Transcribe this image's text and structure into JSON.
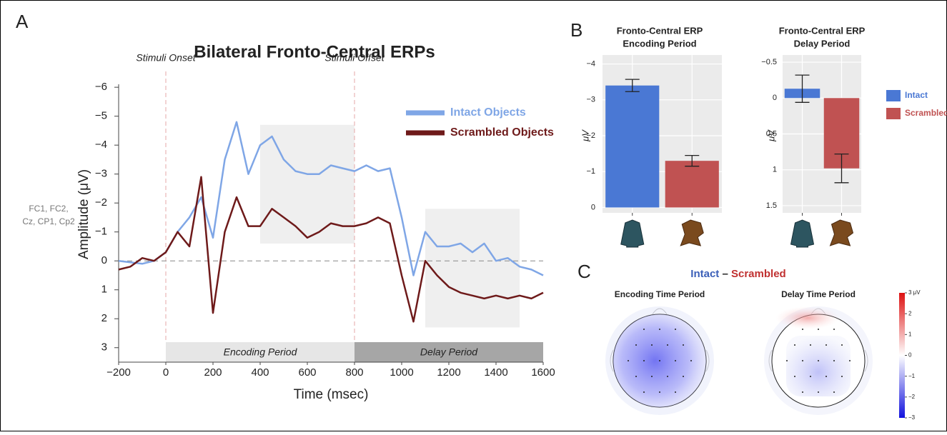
{
  "panel_labels": [
    "A",
    "B",
    "C"
  ],
  "chart_data": [
    {
      "type": "line",
      "title": "Bilateral Fronto-Central ERPs",
      "x_label": "Time (msec)",
      "y_label": "Amplitude (μV)",
      "channel_note": [
        "FC1, FC2,",
        "Cz, CP1, Cp2"
      ],
      "x": [
        -200,
        -150,
        -100,
        -50,
        0,
        50,
        100,
        150,
        200,
        250,
        300,
        350,
        400,
        450,
        500,
        550,
        600,
        650,
        700,
        750,
        800,
        850,
        900,
        950,
        1000,
        1050,
        1100,
        1150,
        1200,
        1250,
        1300,
        1350,
        1400,
        1450,
        1500,
        1550,
        1600
      ],
      "series": [
        {
          "name": "Intact Objects",
          "color": "#7fa6e6",
          "values": [
            0,
            0.05,
            0.1,
            0,
            -0.3,
            -1.0,
            -1.5,
            -2.2,
            -0.8,
            -3.5,
            -4.8,
            -3.0,
            -4.0,
            -4.3,
            -3.5,
            -3.1,
            -3.0,
            -3.0,
            -3.3,
            -3.2,
            -3.1,
            -3.3,
            -3.1,
            -3.2,
            -1.5,
            0.5,
            -1.0,
            -0.5,
            -0.5,
            -0.6,
            -0.3,
            -0.6,
            0.0,
            -0.1,
            0.2,
            0.3,
            0.5
          ]
        },
        {
          "name": "Scrambled Objects",
          "color": "#6e1a1a",
          "values": [
            0.3,
            0.2,
            -0.1,
            0,
            -0.3,
            -1.0,
            -0.5,
            -2.9,
            1.8,
            -1.0,
            -2.2,
            -1.2,
            -1.2,
            -1.8,
            -1.5,
            -1.2,
            -0.8,
            -1.0,
            -1.3,
            -1.2,
            -1.2,
            -1.3,
            -1.5,
            -1.3,
            0.5,
            2.1,
            0.0,
            0.5,
            0.9,
            1.1,
            1.2,
            1.3,
            1.2,
            1.3,
            1.2,
            1.3,
            1.1
          ]
        }
      ],
      "xlim": [
        -200,
        1600
      ],
      "xticks": [
        {
          "value": -200,
          "label": "−200"
        },
        0,
        200,
        400,
        600,
        800,
        1000,
        1200,
        1400,
        1600
      ],
      "ylim": [
        3.5,
        -6.3
      ],
      "yticks": [
        {
          "value": -6,
          "label": "−6"
        },
        {
          "value": -5,
          "label": "−5"
        },
        {
          "value": -4,
          "label": "−4"
        },
        {
          "value": -3,
          "label": "−3"
        },
        {
          "value": -2,
          "label": "−2"
        },
        {
          "value": -1,
          "label": "−1"
        },
        0,
        1,
        2,
        3
      ],
      "events": [
        {
          "label": "Stimuli Onset",
          "x": 0
        },
        {
          "label": "Stimuli Offset",
          "x": 800
        }
      ],
      "periods": [
        {
          "label": "Encoding Period",
          "x": [
            0,
            800
          ],
          "color": "#e6e6e6"
        },
        {
          "label": "Delay Period",
          "x": [
            800,
            1600
          ],
          "color": "#a6a6a6"
        }
      ],
      "shaded_windows": [
        {
          "x": [
            400,
            800
          ],
          "y": [
            -4.7,
            -0.6
          ]
        },
        {
          "x": [
            1100,
            1500
          ],
          "y": [
            -1.8,
            2.3
          ]
        }
      ]
    },
    {
      "type": "bar",
      "title": [
        "Fronto-Central ERP",
        "Encoding Period"
      ],
      "y_label": "μV",
      "categories": [
        null,
        null
      ],
      "values": [
        -3.4,
        -1.3
      ],
      "errors": [
        0.17,
        0.15
      ],
      "colors": [
        "#4a78d4",
        "#c05252"
      ],
      "ylim": [
        0.15,
        -4.25
      ],
      "yticks": [
        {
          "value": -4,
          "label": "−4"
        },
        {
          "value": -3,
          "label": "−3"
        },
        {
          "value": -2,
          "label": "−2"
        },
        {
          "value": -1,
          "label": "−1"
        },
        0
      ]
    },
    {
      "type": "bar",
      "title": [
        "Fronto-Central ERP",
        "Delay Period"
      ],
      "y_label": "μV",
      "categories": [
        "Intact",
        "Scrambled"
      ],
      "values": [
        -0.13,
        0.98
      ],
      "errors": [
        0.19,
        0.2
      ],
      "colors": [
        "#4a78d4",
        "#c05252"
      ],
      "legend": "right",
      "ylim": [
        1.6,
        -0.6
      ],
      "yticks": [
        {
          "value": -0.5,
          "label": "−0.5"
        },
        0,
        0.5,
        1,
        1.5
      ]
    }
  ],
  "topography": {
    "title": [
      "Intact",
      "–",
      "Scrambled"
    ],
    "maps": [
      "Encoding Time Period",
      "Delay Time Period"
    ],
    "colorbar_ticks": [
      {
        "value": 3,
        "label": "3 μV"
      },
      2,
      1,
      0,
      {
        "value": -1,
        "label": "−1"
      },
      {
        "value": -2,
        "label": "−2"
      },
      {
        "value": -3,
        "label": "−3"
      }
    ]
  }
}
